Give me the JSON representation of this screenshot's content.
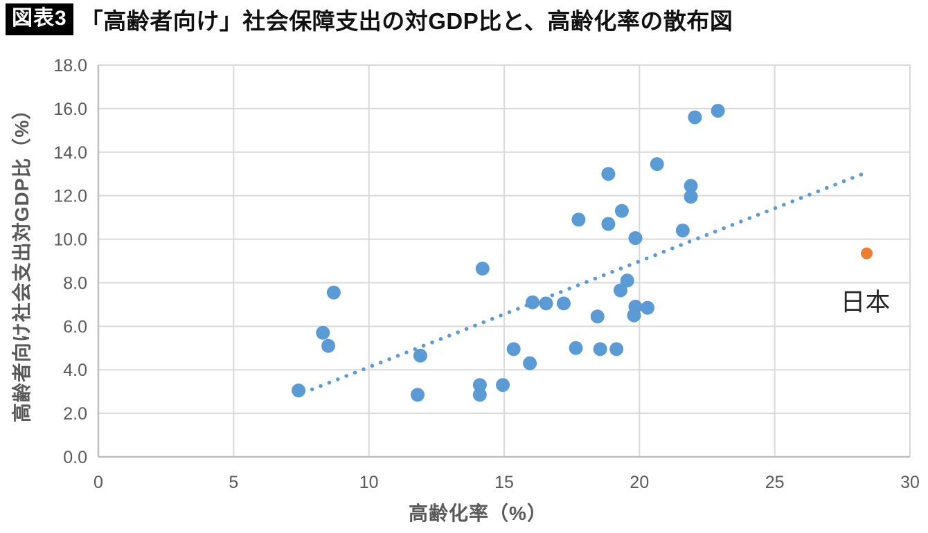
{
  "header": {
    "badge": "図表3",
    "title": "「高齢者向け」社会保障支出の対GDP比と、高齢化率の散布図"
  },
  "chart_data": {
    "type": "scatter",
    "title": "「高齢者向け」社会保障支出の対GDP比と、高齢化率の散布図",
    "xlabel": "高齢化率（%）",
    "ylabel": "高齢者向け社会支出対GDP比（%）",
    "xlim": [
      0,
      30
    ],
    "ylim": [
      0,
      18
    ],
    "grid": true,
    "legend": "none",
    "x_ticks": [
      0,
      5,
      10,
      15,
      20,
      25,
      30
    ],
    "x_tick_labels": [
      "0",
      "5",
      "10",
      "15",
      "20",
      "25",
      "30"
    ],
    "y_ticks": [
      0,
      2,
      4,
      6,
      8,
      10,
      12,
      14,
      16,
      18
    ],
    "y_tick_labels": [
      "0.0",
      "2.0",
      "4.0",
      "6.0",
      "8.0",
      "10.0",
      "12.0",
      "14.0",
      "16.0",
      "18.0"
    ],
    "series": [
      {
        "id": "countries",
        "color": "#5B9BD5",
        "points": [
          [
            7.4,
            3.05
          ],
          [
            8.3,
            5.7
          ],
          [
            8.5,
            5.1
          ],
          [
            8.7,
            7.55
          ],
          [
            11.8,
            2.85
          ],
          [
            11.9,
            4.65
          ],
          [
            14.1,
            3.3
          ],
          [
            14.1,
            2.85
          ],
          [
            14.2,
            8.65
          ],
          [
            14.95,
            3.3
          ],
          [
            15.35,
            4.95
          ],
          [
            15.95,
            4.3
          ],
          [
            16.05,
            7.1
          ],
          [
            16.55,
            7.05
          ],
          [
            17.2,
            7.05
          ],
          [
            17.65,
            5.0
          ],
          [
            17.75,
            10.9
          ],
          [
            18.45,
            6.45
          ],
          [
            18.55,
            4.95
          ],
          [
            18.85,
            13.0
          ],
          [
            18.85,
            10.7
          ],
          [
            19.15,
            4.95
          ],
          [
            19.3,
            7.65
          ],
          [
            19.35,
            11.3
          ],
          [
            19.55,
            8.1
          ],
          [
            19.8,
            6.5
          ],
          [
            19.85,
            6.9
          ],
          [
            19.85,
            10.05
          ],
          [
            20.3,
            6.85
          ],
          [
            20.65,
            13.45
          ],
          [
            21.6,
            10.4
          ],
          [
            21.9,
            12.45
          ],
          [
            21.9,
            11.95
          ],
          [
            22.05,
            15.6
          ],
          [
            22.9,
            15.9
          ]
        ]
      },
      {
        "id": "japan",
        "color": "#ED7D31",
        "points": [
          [
            28.4,
            9.35
          ]
        ]
      }
    ],
    "trendline": {
      "style": "dotted",
      "color": "#5B9BD5",
      "from": [
        7.9,
        3.1
      ],
      "to": [
        28.25,
        13.0
      ]
    },
    "annotations": [
      {
        "text": "日本",
        "x": 28.35,
        "y": 7.1
      }
    ]
  },
  "colors": {
    "gridline": "#D9D9D9",
    "axis_line": "#BFBFBF",
    "tick_text": "#595959",
    "title_text": "#111111",
    "badge_background": "#000000",
    "badge_text": "#FFFFFF",
    "blue_marker": "#5B9BD5",
    "orange_marker": "#ED7D31"
  }
}
